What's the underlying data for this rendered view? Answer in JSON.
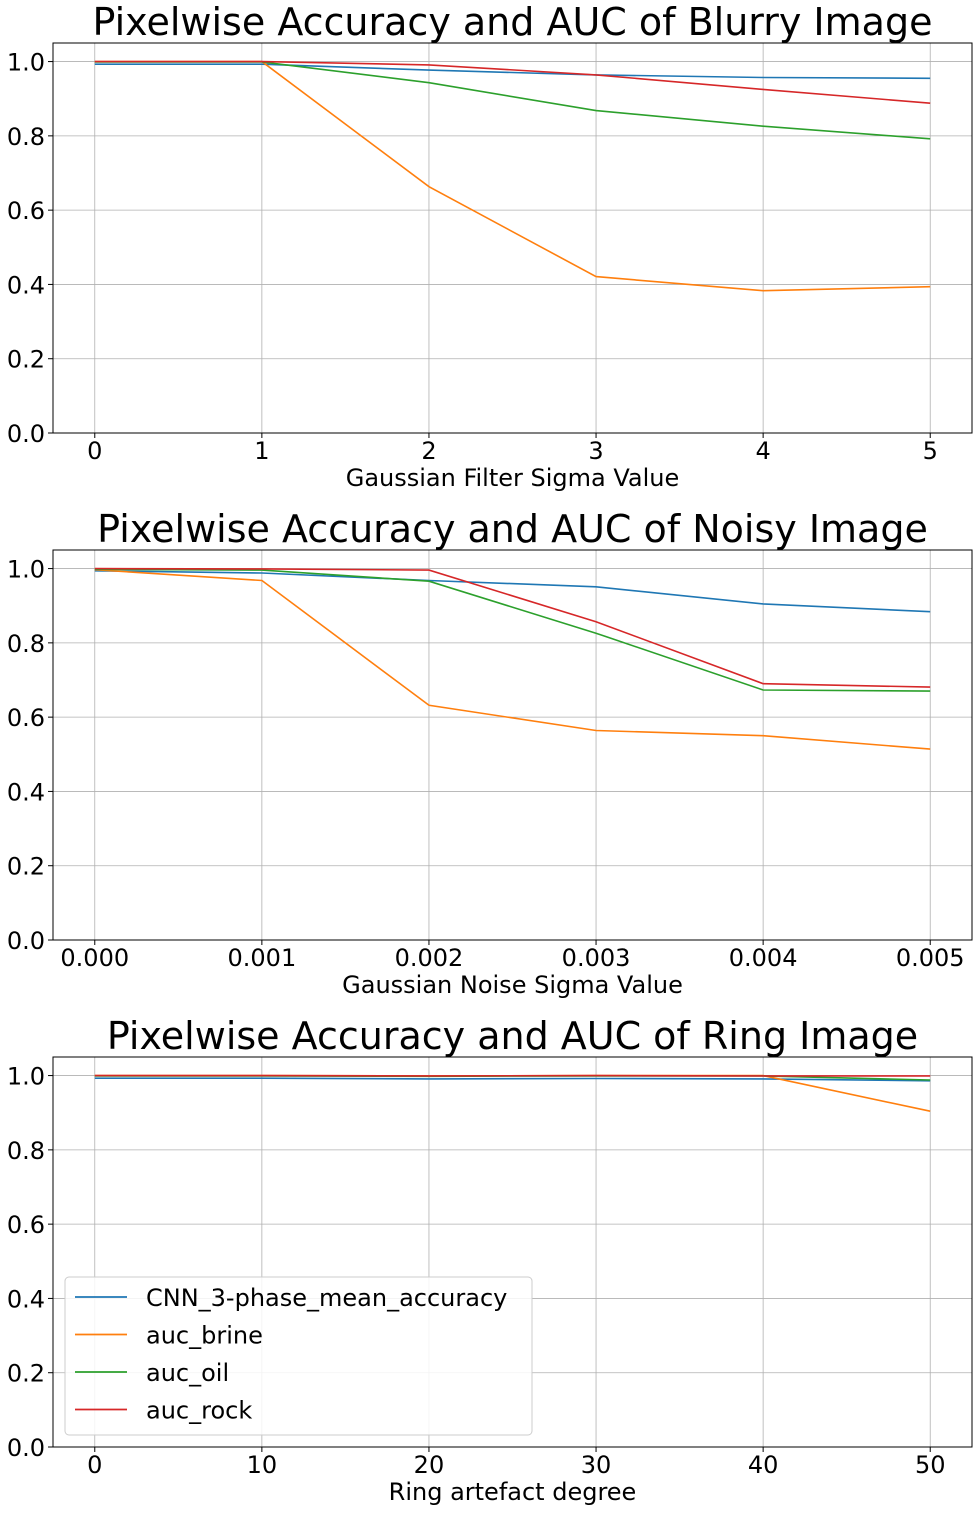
{
  "chart_data": [
    {
      "type": "line",
      "title": "Pixelwise Accuracy and AUC of Blurry Image",
      "xlabel": "Gaussian Filter Sigma Value",
      "ylabel": "",
      "x": [
        0,
        1,
        2,
        3,
        4,
        5
      ],
      "xticks": [
        "0",
        "1",
        "2",
        "3",
        "4",
        "5"
      ],
      "xlim": [
        -0.25,
        5.25
      ],
      "ylim": [
        0.0,
        1.05
      ],
      "yticks": [
        "0.0",
        "0.2",
        "0.4",
        "0.6",
        "0.8",
        "1.0"
      ],
      "grid": true,
      "series": [
        {
          "name": "CNN_3-phase_mean_accuracy",
          "color": "#1f77b4",
          "values": [
            0.993,
            0.993,
            0.977,
            0.964,
            0.957,
            0.955
          ]
        },
        {
          "name": "auc_brine",
          "color": "#ff7f0e",
          "values": [
            1.0,
            1.0,
            0.663,
            0.421,
            0.383,
            0.394
          ]
        },
        {
          "name": "auc_oil",
          "color": "#2ca02c",
          "values": [
            0.999,
            0.999,
            0.943,
            0.868,
            0.826,
            0.792
          ]
        },
        {
          "name": "auc_rock",
          "color": "#d62728",
          "values": [
            1.0,
            1.0,
            0.991,
            0.964,
            0.925,
            0.888
          ]
        }
      ]
    },
    {
      "type": "line",
      "title": "Pixelwise Accuracy and AUC of Noisy Image",
      "xlabel": "Gaussian Noise Sigma Value",
      "ylabel": "",
      "x": [
        0.0,
        0.001,
        0.002,
        0.003,
        0.004,
        0.005
      ],
      "xticks": [
        "0.000",
        "0.001",
        "0.002",
        "0.003",
        "0.004",
        "0.005"
      ],
      "xlim": [
        -0.00025,
        0.00525
      ],
      "ylim": [
        0.0,
        1.05
      ],
      "yticks": [
        "0.0",
        "0.2",
        "0.4",
        "0.6",
        "0.8",
        "1.0"
      ],
      "grid": true,
      "series": [
        {
          "name": "CNN_3-phase_mean_accuracy",
          "color": "#1f77b4",
          "values": [
            0.994,
            0.988,
            0.968,
            0.951,
            0.905,
            0.884
          ]
        },
        {
          "name": "auc_brine",
          "color": "#ff7f0e",
          "values": [
            0.997,
            0.968,
            0.632,
            0.564,
            0.55,
            0.514
          ]
        },
        {
          "name": "auc_oil",
          "color": "#2ca02c",
          "values": [
            0.998,
            0.996,
            0.966,
            0.826,
            0.673,
            0.67
          ]
        },
        {
          "name": "auc_rock",
          "color": "#d62728",
          "values": [
            1.0,
            0.999,
            0.996,
            0.857,
            0.69,
            0.681
          ]
        }
      ]
    },
    {
      "type": "line",
      "title": "Pixelwise Accuracy and AUC of Ring Image",
      "xlabel": "Ring artefact degree",
      "ylabel": "",
      "x": [
        0,
        10,
        20,
        30,
        40,
        50
      ],
      "xticks": [
        "0",
        "10",
        "20",
        "30",
        "40",
        "50"
      ],
      "xlim": [
        -2.5,
        52.5
      ],
      "ylim": [
        0.0,
        1.05
      ],
      "yticks": [
        "0.0",
        "0.2",
        "0.4",
        "0.6",
        "0.8",
        "1.0"
      ],
      "grid": true,
      "legend": "lower-left",
      "series": [
        {
          "name": "CNN_3-phase_mean_accuracy",
          "color": "#1f77b4",
          "values": [
            0.993,
            0.993,
            0.991,
            0.992,
            0.991,
            0.986
          ]
        },
        {
          "name": "auc_brine",
          "color": "#ff7f0e",
          "values": [
            1.0,
            1.0,
            0.999,
            1.0,
            1.0,
            0.904
          ]
        },
        {
          "name": "auc_oil",
          "color": "#2ca02c",
          "values": [
            0.999,
            0.999,
            0.998,
            0.999,
            0.999,
            0.988
          ]
        },
        {
          "name": "auc_rock",
          "color": "#d62728",
          "values": [
            1.0,
            1.0,
            0.999,
            1.0,
            0.999,
            0.999
          ]
        }
      ]
    }
  ]
}
